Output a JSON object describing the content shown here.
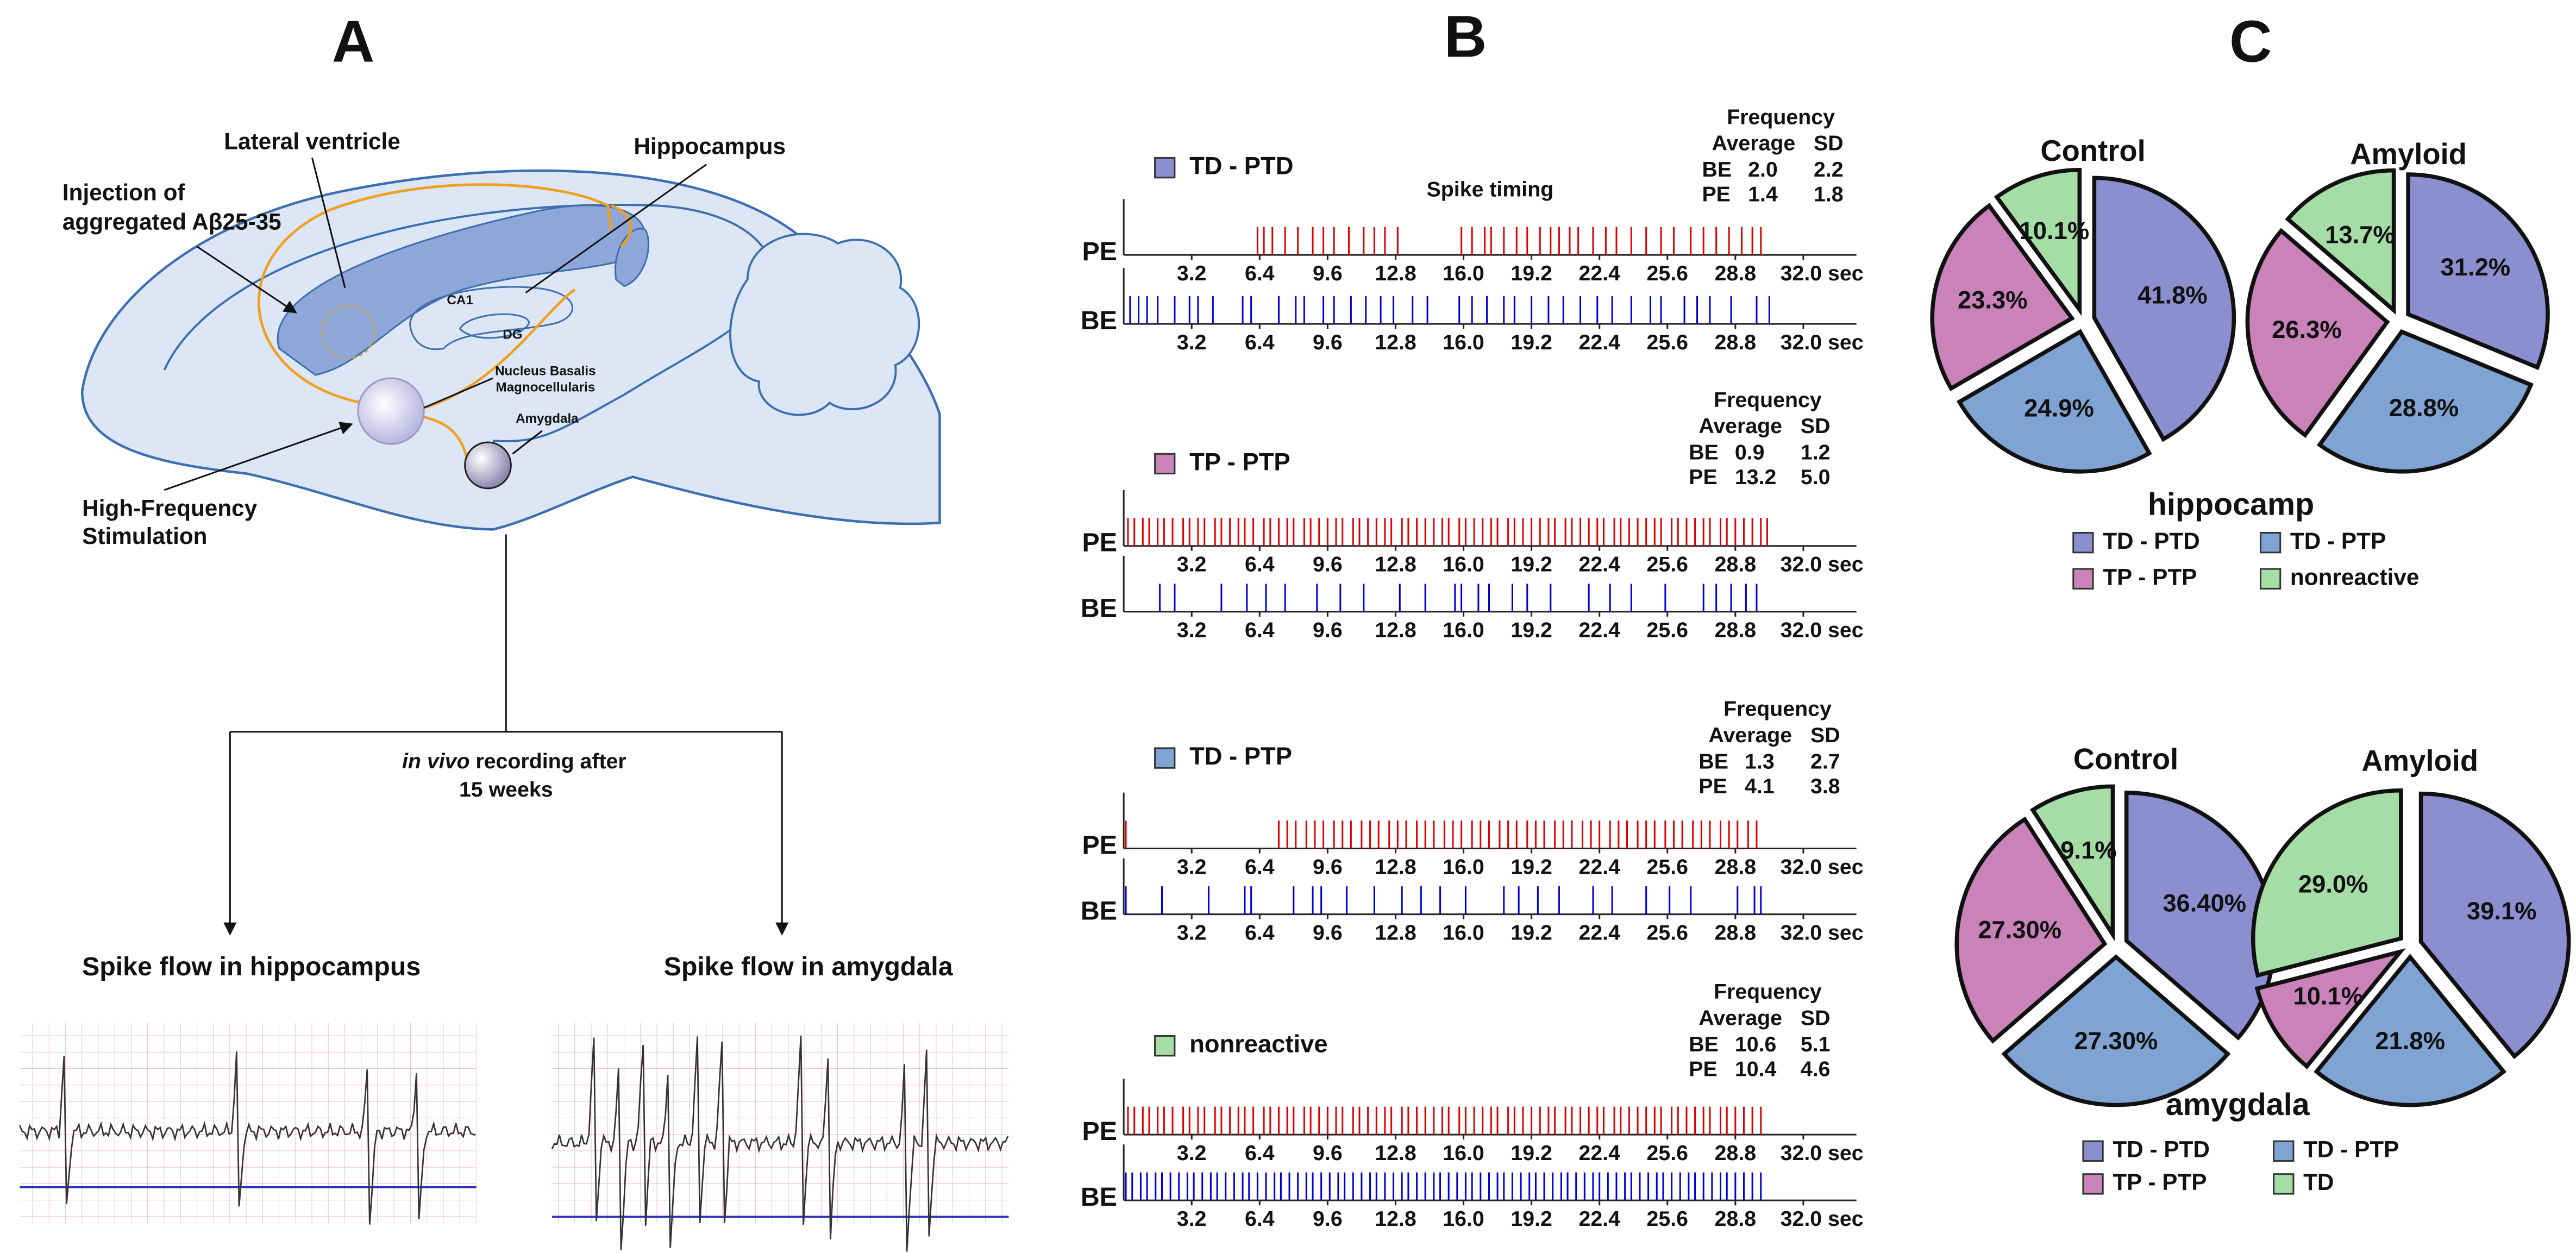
{
  "panel_labels": [
    "A",
    "B",
    "C"
  ],
  "diagram": {
    "lateral_ventricle": "Lateral ventricle",
    "hippocampus": "Hippocampus",
    "injection": [
      "Injection of",
      "aggregated Aβ25-35"
    ],
    "ca1": "CA1",
    "dg": "DG",
    "nucleus": [
      "Nucleus Basalis",
      "Magnocellularis"
    ],
    "amygdala": "Amygdala",
    "stimulation": [
      "High-Frequency",
      "Stimulation"
    ],
    "recording": [
      "in vivo",
      " recording after",
      "15 weeks"
    ],
    "flow_hippocampus": "Spike flow in hippocampus",
    "flow_amygdala": "Spike flow in amygdala"
  },
  "panel_c": {
    "groups": [
      "hippocamp",
      "amygdala"
    ]
  },
  "chart_data": [
    {
      "type": "raster",
      "title": "TD - PTD",
      "color": "#8b8fd0",
      "annotation": "Spike timing",
      "frequency": {
        "title": "Frequency",
        "header": [
          "Average",
          "SD"
        ],
        "rows": [
          [
            "BE",
            "2.0",
            "2.2"
          ],
          [
            "PE",
            "1.4",
            "1.8"
          ]
        ]
      },
      "xlim": [
        0,
        34.5
      ],
      "xticks": [
        3.2,
        6.4,
        9.6,
        12.8,
        {
          "value": 16,
          "label": "16.0"
        },
        19.2,
        22.4,
        25.6,
        28.8,
        {
          "value": 32,
          "label": "32.0 sec"
        }
      ],
      "series": [
        {
          "name": "PE",
          "color": "#e00000",
          "values": [
            6.3,
            6.6,
            7.0,
            7.6,
            8.2,
            8.9,
            9.4,
            9.9,
            10.6,
            11.3,
            11.8,
            12.3,
            12.9,
            15.9,
            16.4,
            17.0,
            17.3,
            17.9,
            18.5,
            19.0,
            19.6,
            20.1,
            20.5,
            21.0,
            21.4,
            22.1,
            22.7,
            23.2,
            23.9,
            24.6,
            25.3,
            25.9,
            26.7,
            27.3,
            27.9,
            28.5,
            29.1,
            29.6,
            30.0
          ]
        },
        {
          "name": "BE",
          "color": "#0000dd",
          "values": [
            0.3,
            0.7,
            1.1,
            1.6,
            2.4,
            3.1,
            3.5,
            4.2,
            5.6,
            6.0,
            7.3,
            8.1,
            8.5,
            9.4,
            9.9,
            10.7,
            11.4,
            12.1,
            12.7,
            13.6,
            14.3,
            15.8,
            16.4,
            17.1,
            17.9,
            18.4,
            19.2,
            20.0,
            20.7,
            21.5,
            22.3,
            23.0,
            23.9,
            24.8,
            25.3,
            26.4,
            27.0,
            27.6,
            28.6,
            29.8,
            30.4
          ]
        }
      ]
    },
    {
      "type": "raster",
      "title": "TP - PTP",
      "color": "#c983b8",
      "frequency": {
        "title": "Frequency",
        "header": [
          "Average",
          "SD"
        ],
        "rows": [
          [
            "BE",
            "0.9",
            "1.2"
          ],
          [
            "PE",
            "13.2",
            "5.0"
          ]
        ]
      },
      "xlim": [
        0,
        34.5
      ],
      "xticks": [
        3.2,
        6.4,
        9.6,
        12.8,
        {
          "value": 16,
          "label": "16.0"
        },
        19.2,
        22.4,
        25.6,
        28.8,
        {
          "value": 32,
          "label": "32.0 sec"
        }
      ],
      "series": [
        {
          "name": "PE",
          "color": "#e00000",
          "values": [
            0.2,
            0.5,
            0.9,
            1.2,
            1.6,
            1.9,
            2.3,
            2.8,
            3.1,
            3.5,
            3.8,
            4.3,
            4.6,
            5.0,
            5.4,
            5.7,
            6.1,
            6.6,
            6.9,
            7.3,
            7.7,
            8.0,
            8.5,
            8.8,
            9.2,
            9.6,
            10.0,
            10.3,
            10.8,
            11.1,
            11.5,
            11.9,
            12.3,
            12.6,
            13.1,
            13.4,
            13.8,
            14.2,
            14.6,
            15.0,
            15.3,
            15.8,
            16.1,
            16.5,
            16.9,
            17.3,
            17.6,
            18.1,
            18.4,
            18.8,
            19.2,
            19.6,
            20.0,
            20.3,
            20.8,
            21.1,
            21.5,
            21.9,
            22.3,
            22.6,
            23.1,
            23.4,
            23.8,
            24.2,
            24.6,
            25.0,
            25.3,
            25.8,
            26.1,
            26.5,
            26.9,
            27.3,
            27.6,
            28.1,
            28.4,
            28.8,
            29.2,
            29.6,
            30.0,
            30.3
          ]
        },
        {
          "name": "BE",
          "color": "#0000dd",
          "values": [
            1.7,
            2.4,
            4.6,
            5.8,
            6.7,
            7.6,
            9.1,
            10.2,
            11.3,
            13.0,
            14.2,
            15.6,
            15.9,
            16.7,
            17.2,
            18.3,
            19.0,
            20.1,
            21.9,
            22.9,
            23.9,
            25.5,
            27.3,
            27.9,
            28.6,
            29.3,
            29.8
          ]
        }
      ]
    },
    {
      "type": "raster",
      "title": "TD - PTP",
      "color": "#7fa3d2",
      "frequency": {
        "title": "Frequency",
        "header": [
          "Average",
          "SD"
        ],
        "rows": [
          [
            "BE",
            "1.3",
            "2.7"
          ],
          [
            "PE",
            "4.1",
            "3.8"
          ]
        ]
      },
      "xlim": [
        0,
        34.5
      ],
      "xticks": [
        3.2,
        6.4,
        9.6,
        12.8,
        {
          "value": 16,
          "label": "16.0"
        },
        19.2,
        22.4,
        25.6,
        28.8,
        {
          "value": 32,
          "label": "32.0 sec"
        }
      ],
      "series": [
        {
          "name": "PE",
          "color": "#e00000",
          "values": [
            0.1,
            7.3,
            7.7,
            8.1,
            8.6,
            9.0,
            9.4,
            9.9,
            10.3,
            10.7,
            11.2,
            11.6,
            12.0,
            12.5,
            12.9,
            13.3,
            13.8,
            14.2,
            14.6,
            15.1,
            15.5,
            15.9,
            16.4,
            16.8,
            17.2,
            17.7,
            18.1,
            18.5,
            19.0,
            19.4,
            19.8,
            20.3,
            20.7,
            21.1,
            21.6,
            22.0,
            22.4,
            22.9,
            23.3,
            23.7,
            24.2,
            24.6,
            25.0,
            25.5,
            25.9,
            26.3,
            26.8,
            27.2,
            27.6,
            28.1,
            28.5,
            28.9,
            29.4,
            29.8
          ]
        },
        {
          "name": "BE",
          "color": "#0000dd",
          "values": [
            0.1,
            1.8,
            4.0,
            5.7,
            6.0,
            8.0,
            8.9,
            9.3,
            10.5,
            11.8,
            13.1,
            14.0,
            14.9,
            16.1,
            17.9,
            18.6,
            19.5,
            20.5,
            22.1,
            23.0,
            24.6,
            25.7,
            26.7,
            28.9,
            29.7,
            30.0
          ]
        }
      ]
    },
    {
      "type": "raster",
      "title": "nonreactive",
      "color": "#a6dca6",
      "frequency": {
        "title": "Frequency",
        "header": [
          "Average",
          "SD"
        ],
        "rows": [
          [
            "BE",
            "10.6",
            "5.1"
          ],
          [
            "PE",
            "10.4",
            "4.6"
          ]
        ]
      },
      "xlim": [
        0,
        34.5
      ],
      "xticks": [
        3.2,
        6.4,
        9.6,
        12.8,
        {
          "value": 16,
          "label": "16.0"
        },
        19.2,
        22.4,
        25.6,
        28.8,
        {
          "value": 32,
          "label": "32.0 sec"
        }
      ],
      "series": [
        {
          "name": "PE",
          "color": "#e00000",
          "values": [
            0.2,
            0.5,
            0.9,
            1.2,
            1.6,
            1.9,
            2.3,
            2.8,
            3.1,
            3.5,
            3.8,
            4.3,
            4.6,
            5.0,
            5.4,
            5.7,
            6.1,
            6.6,
            6.9,
            7.3,
            7.7,
            8.0,
            8.5,
            8.8,
            9.2,
            9.6,
            10.0,
            10.3,
            10.8,
            11.1,
            11.5,
            11.9,
            12.3,
            12.6,
            13.1,
            13.4,
            13.8,
            14.2,
            14.6,
            15.0,
            15.3,
            15.8,
            16.1,
            16.5,
            16.9,
            17.3,
            17.6,
            18.1,
            18.4,
            18.8,
            19.2,
            19.6,
            20.0,
            20.3,
            20.8,
            21.1,
            21.5,
            21.9,
            22.3,
            22.6,
            23.1,
            23.4,
            23.8,
            24.2,
            24.6,
            25.0,
            25.3,
            25.8,
            26.1,
            26.5,
            26.9,
            27.3,
            27.6,
            28.1,
            28.4,
            28.8,
            29.2,
            29.6,
            30.0
          ]
        },
        {
          "name": "BE",
          "color": "#0000dd",
          "values": [
            0.1,
            0.4,
            0.8,
            1.1,
            1.5,
            1.8,
            2.2,
            2.6,
            3.0,
            3.3,
            3.7,
            4.1,
            4.4,
            4.8,
            5.2,
            5.6,
            5.9,
            6.3,
            6.7,
            7.1,
            7.4,
            7.8,
            8.2,
            8.6,
            8.9,
            9.3,
            9.7,
            10.1,
            10.4,
            10.8,
            11.2,
            11.6,
            11.9,
            12.3,
            12.7,
            13.1,
            13.4,
            13.8,
            14.2,
            14.6,
            14.9,
            15.3,
            15.7,
            16.1,
            16.4,
            16.8,
            17.2,
            17.6,
            17.9,
            18.3,
            18.7,
            19.1,
            19.4,
            19.8,
            20.2,
            20.6,
            20.9,
            21.3,
            21.7,
            22.1,
            22.4,
            22.8,
            23.2,
            23.6,
            23.9,
            24.3,
            24.7,
            25.1,
            25.4,
            25.8,
            26.2,
            26.6,
            26.9,
            27.3,
            27.7,
            28.1,
            28.4,
            28.8,
            29.2,
            29.6,
            30.0
          ]
        }
      ]
    },
    {
      "type": "pie",
      "title": "Control",
      "caption": "hippocamp",
      "categories": [
        "TD - PTD",
        "TD - PTP",
        "TP - PTP",
        "nonreactive"
      ],
      "colors": [
        "#8b8fd0",
        "#7fa3d2",
        "#c983b8",
        "#a6dca6"
      ],
      "values": [
        41.8,
        24.9,
        23.3,
        10.1
      ],
      "value_labels": [
        "41.8%",
        "24.9%",
        "23.3%",
        "10.1%"
      ]
    },
    {
      "type": "pie",
      "title": "Amyloid",
      "categories": [
        "TD - PTD",
        "TD - PTP",
        "TP - PTP",
        "nonreactive"
      ],
      "colors": [
        "#8b8fd0",
        "#7fa3d2",
        "#c983b8",
        "#a6dca6"
      ],
      "values": [
        31.2,
        28.8,
        26.3,
        13.7
      ],
      "value_labels": [
        "31.2%",
        "28.8%",
        "26.3%",
        "13.7%"
      ]
    },
    {
      "type": "pie",
      "title": "Control",
      "caption": "amygdala",
      "categories": [
        "TD - PTD",
        "TD - PTP",
        "TP - PTP",
        "TD"
      ],
      "colors": [
        "#8b8fd0",
        "#7fa3d2",
        "#c983b8",
        "#a6dca6"
      ],
      "values": [
        36.4,
        27.3,
        27.3,
        9.1
      ],
      "value_labels": [
        "36.40%",
        "27.30%",
        "27.30%",
        "9.1%"
      ]
    },
    {
      "type": "pie",
      "title": "Amyloid",
      "categories": [
        "TD - PTD",
        "TD - PTP",
        "TP - PTP",
        "TD"
      ],
      "colors": [
        "#8b8fd0",
        "#7fa3d2",
        "#c983b8",
        "#a6dca6"
      ],
      "values": [
        39.1,
        21.8,
        10.1,
        29.0
      ],
      "value_labels": [
        "39.1%",
        "21.8%",
        "10.1%",
        "29.0%"
      ]
    }
  ]
}
